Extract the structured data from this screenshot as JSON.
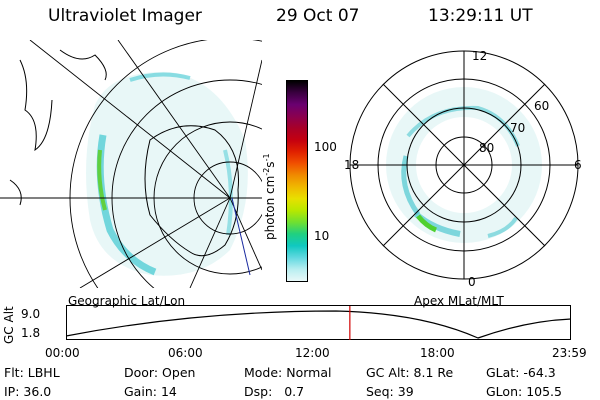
{
  "header": {
    "title": "Ultraviolet Imager",
    "date": "29 Oct 07",
    "time": "13:29:11 UT"
  },
  "panels": {
    "left_caption": "Geographic Lat/Lon",
    "right_caption": "Apex MLat/MLT"
  },
  "polar": {
    "mlt_labels": {
      "top": "12",
      "left": "18",
      "right": "6",
      "bottom": "0"
    },
    "lat_labels": [
      "80",
      "70",
      "60"
    ]
  },
  "colorbar": {
    "unit": "photon cm",
    "unit_sup1": "-2",
    "unit_mid": "s",
    "unit_sup2": "-1",
    "ticks": [
      "100",
      "10"
    ],
    "colors": [
      "#000000",
      "#3a0040",
      "#6a0070",
      "#8a0050",
      "#a80028",
      "#c40010",
      "#e02000",
      "#f05000",
      "#f08a00",
      "#f0b800",
      "#e8e000",
      "#b8e800",
      "#70e030",
      "#20d080",
      "#10c8c0",
      "#60d8e0",
      "#b8eef0",
      "#e8f8f8"
    ]
  },
  "altitude_plot": {
    "ylabel": "GC Alt",
    "ymax_label": "9.0",
    "ymin_label": "1.8",
    "x_ticks": [
      "00:00",
      "06:00",
      "12:00",
      "18:00",
      "23:59"
    ],
    "current_time_hours": 13.49
  },
  "info": {
    "flt_label": "Flt:",
    "flt_value": "LBHL",
    "ip_label": "IP:",
    "ip_value": "36.0",
    "door_label": "Door:",
    "door_value": "Open",
    "gain_label": "Gain:",
    "gain_value": "14",
    "mode_label": "Mode:",
    "mode_value": "Normal",
    "dsp_label": "Dsp:",
    "dsp_value": "0.7",
    "gcalt_label": "GC Alt:",
    "gcalt_value": "8.1 Re",
    "seq_label": "Seq:",
    "seq_value": "39",
    "glat_label": "GLat:",
    "glat_value": "-64.3",
    "glon_label": "GLon:",
    "glon_value": "105.5"
  }
}
